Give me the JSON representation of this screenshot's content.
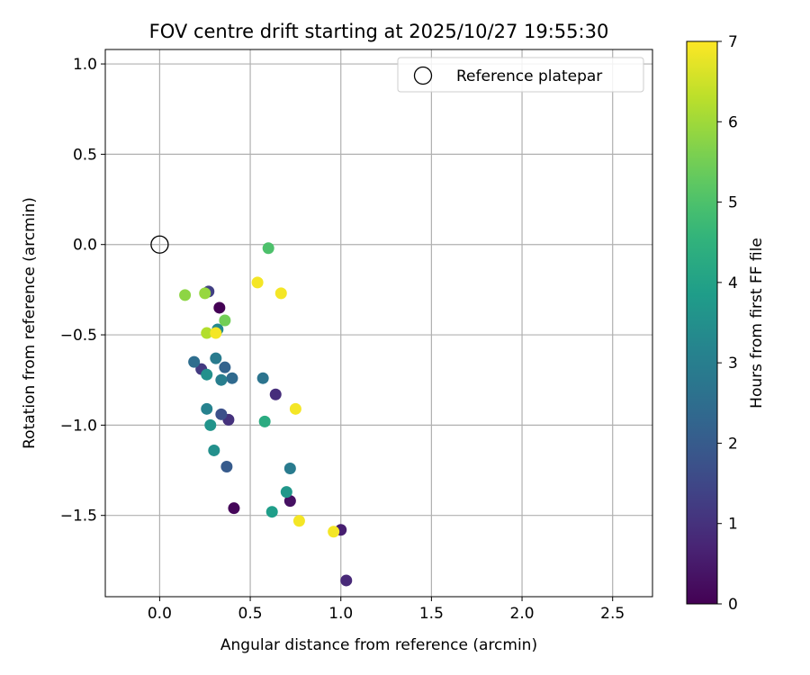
{
  "chart_data": {
    "type": "scatter",
    "title": "FOV centre drift starting at 2025/10/27 19:55:30",
    "xlabel": "Angular distance from reference (arcmin)",
    "ylabel": "Rotation from reference (arcmin)",
    "xlim": [
      -0.3,
      2.72
    ],
    "ylim": [
      -1.95,
      1.08
    ],
    "xticks": [
      0.0,
      0.5,
      1.0,
      1.5,
      2.0,
      2.5
    ],
    "xtick_labels": [
      "0.0",
      "0.5",
      "1.0",
      "1.5",
      "2.0",
      "2.5"
    ],
    "yticks": [
      1.0,
      0.5,
      0.0,
      -0.5,
      -1.0,
      -1.5
    ],
    "ytick_labels": [
      "1.0",
      "0.5",
      "0.0",
      "−0.5",
      "−1.0",
      "−1.5"
    ],
    "grid": true,
    "legend": {
      "position": "top-right",
      "entries": [
        {
          "label": "Reference platepar",
          "marker": "open-circle"
        }
      ]
    },
    "reference_point": {
      "x": 0.0,
      "y": 0.0,
      "label": "Reference platepar"
    },
    "colorbar": {
      "label": "Hours from first FF file",
      "colormap": "viridis",
      "range": [
        0,
        7
      ],
      "ticks": [
        0,
        1,
        2,
        3,
        4,
        5,
        6,
        7
      ]
    },
    "points": [
      {
        "x": 0.33,
        "y": -0.35,
        "hours": 0.0
      },
      {
        "x": 0.41,
        "y": -1.46,
        "hours": 0.1
      },
      {
        "x": 0.72,
        "y": -1.42,
        "hours": 0.3
      },
      {
        "x": 1.0,
        "y": -1.58,
        "hours": 0.6
      },
      {
        "x": 1.03,
        "y": -1.86,
        "hours": 0.8
      },
      {
        "x": 0.64,
        "y": -0.83,
        "hours": 0.9
      },
      {
        "x": 0.38,
        "y": -0.97,
        "hours": 1.0
      },
      {
        "x": 0.23,
        "y": -0.69,
        "hours": 1.2
      },
      {
        "x": 0.27,
        "y": -0.26,
        "hours": 1.3
      },
      {
        "x": 0.34,
        "y": -0.94,
        "hours": 1.7
      },
      {
        "x": 0.37,
        "y": -1.23,
        "hours": 2.0
      },
      {
        "x": 0.36,
        "y": -0.68,
        "hours": 2.2
      },
      {
        "x": 0.4,
        "y": -0.74,
        "hours": 2.4
      },
      {
        "x": 0.19,
        "y": -0.65,
        "hours": 2.5
      },
      {
        "x": 0.57,
        "y": -0.74,
        "hours": 2.7
      },
      {
        "x": 0.72,
        "y": -1.24,
        "hours": 2.9
      },
      {
        "x": 0.31,
        "y": -0.63,
        "hours": 2.9
      },
      {
        "x": 0.34,
        "y": -0.75,
        "hours": 3.0
      },
      {
        "x": 0.26,
        "y": -0.91,
        "hours": 3.1
      },
      {
        "x": 0.32,
        "y": -0.47,
        "hours": 3.3
      },
      {
        "x": 0.26,
        "y": -0.72,
        "hours": 3.5
      },
      {
        "x": 0.3,
        "y": -1.14,
        "hours": 3.5
      },
      {
        "x": 0.28,
        "y": -1.0,
        "hours": 3.6
      },
      {
        "x": 0.7,
        "y": -1.37,
        "hours": 3.7
      },
      {
        "x": 0.62,
        "y": -1.48,
        "hours": 3.9
      },
      {
        "x": 0.58,
        "y": -0.98,
        "hours": 4.3
      },
      {
        "x": 0.6,
        "y": -0.02,
        "hours": 5.0
      },
      {
        "x": 0.36,
        "y": -0.42,
        "hours": 5.5
      },
      {
        "x": 0.14,
        "y": -0.28,
        "hours": 5.8
      },
      {
        "x": 0.25,
        "y": -0.27,
        "hours": 5.9
      },
      {
        "x": 0.26,
        "y": -0.49,
        "hours": 6.2
      },
      {
        "x": 0.31,
        "y": -0.49,
        "hours": 6.9
      },
      {
        "x": 0.54,
        "y": -0.21,
        "hours": 6.9
      },
      {
        "x": 0.67,
        "y": -0.27,
        "hours": 6.9
      },
      {
        "x": 0.75,
        "y": -0.91,
        "hours": 6.9
      },
      {
        "x": 0.77,
        "y": -1.53,
        "hours": 6.9
      },
      {
        "x": 0.96,
        "y": -1.59,
        "hours": 6.9
      }
    ]
  }
}
